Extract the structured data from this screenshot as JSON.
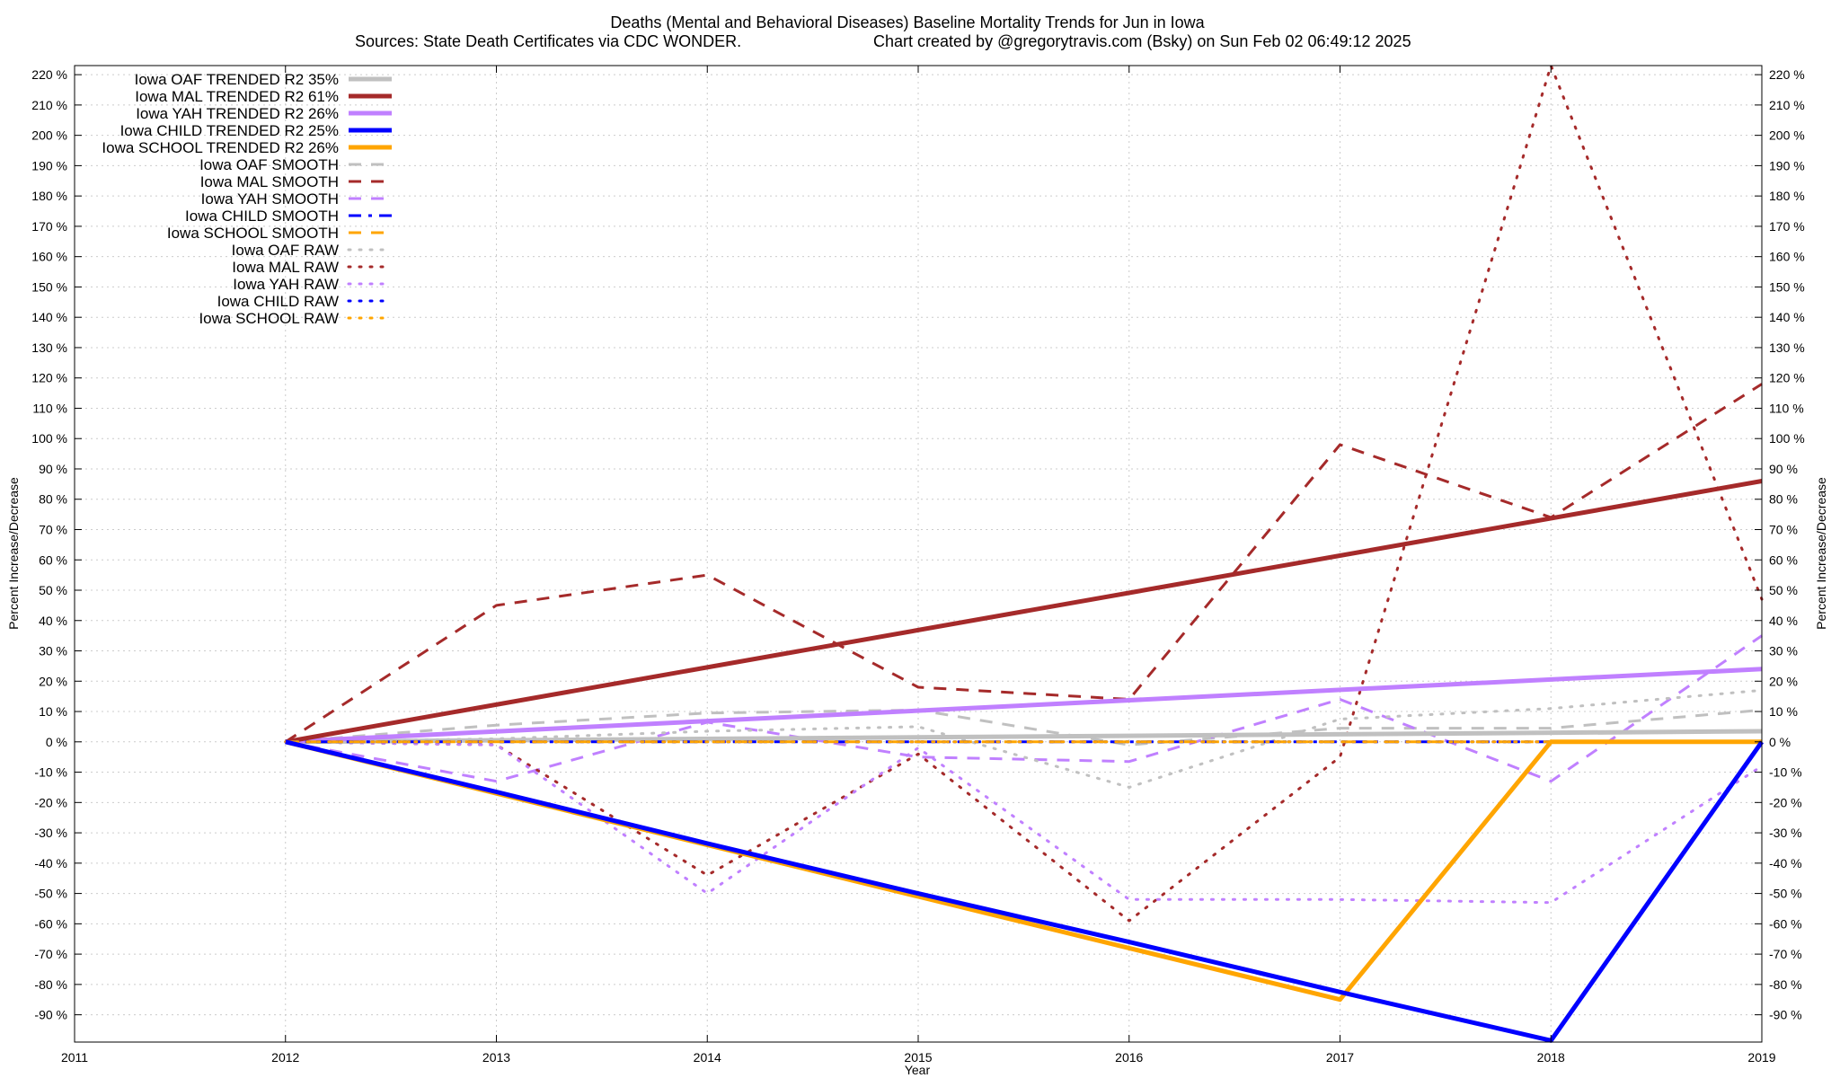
{
  "chart_data": {
    "type": "line",
    "title": "Deaths (Mental and Behavioral Diseases)  Baseline Mortality Trends for Jun in Iowa",
    "subtitle_source": "Sources: State Death Certificates via CDC WONDER.",
    "subtitle_credit": "Chart created by @gregorytravis.com (Bsky) on Sun Feb 02 06:49:12 2025",
    "xlabel": "Year",
    "ylabel": "Percent Increase/Decrease",
    "xlim": [
      2011,
      2019
    ],
    "ylim": [
      -99,
      223
    ],
    "x_ticks": [
      2011,
      2012,
      2013,
      2014,
      2015,
      2016,
      2017,
      2018,
      2019
    ],
    "x_tick_labels": [
      "2011",
      "2012",
      "2013",
      "2014",
      "2015",
      "2016",
      "2017",
      "2018",
      "2019"
    ],
    "y_ticks": [
      -90,
      -80,
      -70,
      -60,
      -50,
      -40,
      -30,
      -20,
      -10,
      0,
      10,
      20,
      30,
      40,
      50,
      60,
      70,
      80,
      90,
      100,
      110,
      120,
      130,
      140,
      150,
      160,
      170,
      180,
      190,
      200,
      210,
      220
    ],
    "y_tick_labels": [
      "-90 %",
      "-80 %",
      "-70 %",
      "-60 %",
      "-50 %",
      "-40 %",
      "-30 %",
      "-20 %",
      "-10 %",
      "0 %",
      "10 %",
      "20 %",
      "30 %",
      "40 %",
      "50 %",
      "60 %",
      "70 %",
      "80 %",
      "90 %",
      "100 %",
      "110 %",
      "120 %",
      "130 %",
      "140 %",
      "150 %",
      "160 %",
      "170 %",
      "180 %",
      "190 %",
      "200 %",
      "210 %",
      "220 %"
    ],
    "grid": true,
    "legend_position": "top-left",
    "series": [
      {
        "name": "Iowa OAF TRENDED R2  35%",
        "color": "#c0c0c0",
        "style": "solid",
        "x": [
          2012,
          2019
        ],
        "values": [
          0,
          3.5
        ]
      },
      {
        "name": "Iowa MAL TRENDED R2  61%",
        "color": "#a52a2a",
        "style": "solid",
        "x": [
          2012,
          2019
        ],
        "values": [
          0,
          86
        ]
      },
      {
        "name": "Iowa YAH TRENDED R2  26%",
        "color": "#c080ff",
        "style": "solid",
        "x": [
          2012,
          2019
        ],
        "values": [
          0,
          24
        ]
      },
      {
        "name": "Iowa CHILD TRENDED R2  25%",
        "color": "#0000ff",
        "style": "solid",
        "x": [
          2012,
          2013,
          2014,
          2015,
          2016,
          2017,
          2018,
          2019
        ],
        "values": [
          0,
          -16.5,
          -33.5,
          -50,
          -66,
          -82.5,
          -98.5,
          0
        ]
      },
      {
        "name": "Iowa SCHOOL TRENDED R2  26%",
        "color": "#ffa500",
        "style": "solid",
        "x": [
          2012,
          2013,
          2014,
          2015,
          2016,
          2017,
          2018,
          2019
        ],
        "values": [
          0,
          -17,
          -34,
          -51,
          -68,
          -85,
          0,
          0
        ]
      },
      {
        "name": "Iowa OAF SMOOTH",
        "color": "#c0c0c0",
        "style": "dashed",
        "x": [
          2012,
          2013,
          2014,
          2015,
          2016,
          2017,
          2018,
          2019
        ],
        "values": [
          0,
          5.5,
          9.5,
          10.5,
          -1,
          4.5,
          4.5,
          10.5
        ]
      },
      {
        "name": "Iowa MAL SMOOTH",
        "color": "#a52a2a",
        "style": "dashed",
        "x": [
          2012,
          2013,
          2014,
          2015,
          2016,
          2017,
          2018,
          2019
        ],
        "values": [
          0,
          45,
          55,
          18,
          14,
          98,
          74,
          118
        ]
      },
      {
        "name": "Iowa YAH SMOOTH",
        "color": "#c080ff",
        "style": "dashed",
        "x": [
          2012,
          2013,
          2014,
          2015,
          2016,
          2017,
          2018,
          2019
        ],
        "values": [
          0,
          -13,
          6.5,
          -5,
          -6.5,
          14,
          -13,
          35
        ]
      },
      {
        "name": "Iowa CHILD SMOOTH",
        "color": "#0000ff",
        "style": "dashdot",
        "x": [
          2012,
          2013,
          2014,
          2015,
          2016,
          2017,
          2018,
          2019
        ],
        "values": [
          0,
          0,
          0,
          0,
          0,
          0,
          0,
          0
        ]
      },
      {
        "name": "Iowa SCHOOL SMOOTH",
        "color": "#ffa500",
        "style": "dashed",
        "x": [
          2012,
          2013,
          2014,
          2015,
          2016,
          2017,
          2018,
          2019
        ],
        "values": [
          0,
          0,
          0,
          0,
          0,
          0,
          0,
          0
        ]
      },
      {
        "name": "Iowa OAF RAW",
        "color": "#c0c0c0",
        "style": "dotted",
        "x": [
          2012,
          2013,
          2014,
          2015,
          2016,
          2017,
          2018,
          2019
        ],
        "values": [
          0,
          1,
          3.5,
          5,
          -15,
          7.5,
          11,
          17
        ]
      },
      {
        "name": "Iowa MAL RAW",
        "color": "#a52a2a",
        "style": "dotted",
        "x": [
          2012,
          2013,
          2014,
          2015,
          2016,
          2017,
          2018,
          2019
        ],
        "values": [
          0,
          -1,
          -44,
          -4,
          -59,
          -5,
          223,
          47
        ]
      },
      {
        "name": "Iowa YAH RAW",
        "color": "#c080ff",
        "style": "dotted",
        "x": [
          2012,
          2013,
          2014,
          2015,
          2016,
          2017,
          2018,
          2019
        ],
        "values": [
          0,
          -1,
          -50,
          -2,
          -52,
          -52,
          -53,
          -8
        ]
      },
      {
        "name": "Iowa CHILD RAW",
        "color": "#0000ff",
        "style": "dotted",
        "x": [
          2012,
          2013,
          2014,
          2015,
          2016,
          2017,
          2018,
          2019
        ],
        "values": [
          0,
          0,
          0,
          0,
          0,
          0,
          0,
          0
        ]
      },
      {
        "name": "Iowa SCHOOL RAW",
        "color": "#ffa500",
        "style": "dotted",
        "x": [
          2012,
          2013,
          2014,
          2015,
          2016,
          2017,
          2018,
          2019
        ],
        "values": [
          0,
          0,
          0,
          0,
          0,
          0,
          0,
          0
        ]
      }
    ]
  }
}
